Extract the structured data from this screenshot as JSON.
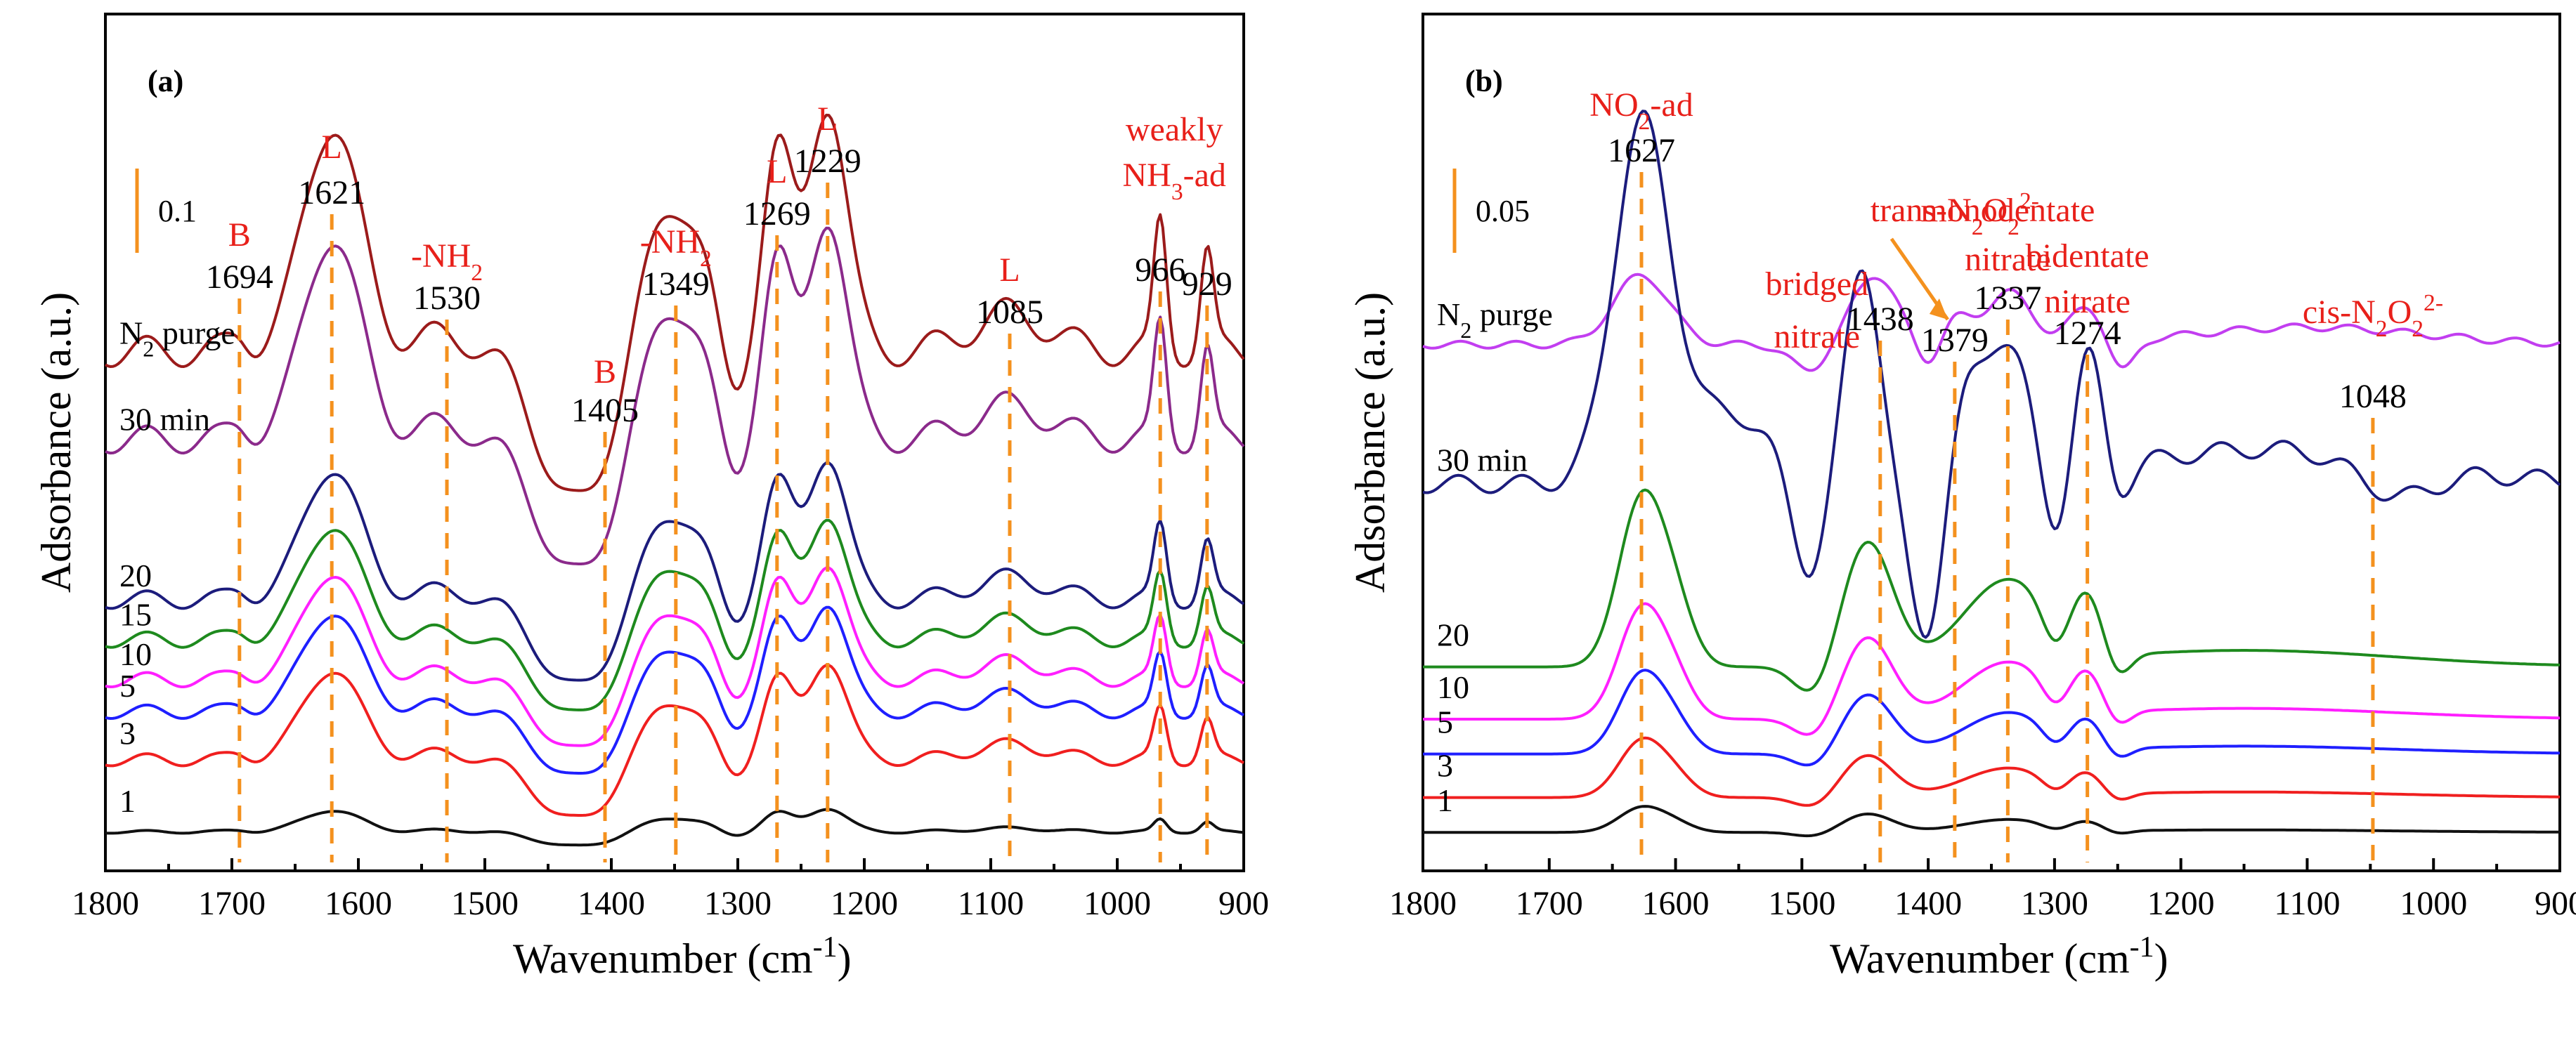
{
  "chart_data": [
    {
      "type": "line",
      "panel": "(a)",
      "xlabel_main": "Wavenumber (cm",
      "xlabel_sup": "-1",
      "xlabel_end": ")",
      "ylabel": "Adsorbance (a.u.)",
      "xlim": [
        1800,
        900
      ],
      "xticks": [
        1800,
        1700,
        1600,
        1500,
        1400,
        1300,
        1200,
        1100,
        1000,
        900
      ],
      "scale_bar": "0.1",
      "peaks": [
        1694,
        1621,
        1530,
        1405,
        1349,
        1269,
        1229,
        1085,
        966,
        929
      ],
      "assignments": [
        {
          "wavenumber": 1694,
          "label": "B"
        },
        {
          "wavenumber": 1621,
          "label": "L"
        },
        {
          "wavenumber": 1530,
          "label": "-NH",
          "sub": "2"
        },
        {
          "wavenumber": 1405,
          "label": "B"
        },
        {
          "wavenumber": 1349,
          "label": "-NH",
          "sub": "2"
        },
        {
          "wavenumber": 1269,
          "label": "L"
        },
        {
          "wavenumber": 1229,
          "label": "L"
        },
        {
          "wavenumber": 1085,
          "label": "L"
        },
        {
          "wavenumber": 966,
          "label": "weakly"
        },
        {
          "wavenumber": 966,
          "label": "NH",
          "sub": "3",
          "tail": "-ad"
        }
      ],
      "series": [
        {
          "name": "N2 purge",
          "label": "N",
          "label_sub": "2",
          "label_tail": " purge",
          "color": "#9b1b1b",
          "offset": 0.64,
          "profile": "a",
          "scale": 0.95
        },
        {
          "name": "30 min",
          "label": "30 min",
          "color": "#8b2a8b",
          "offset": 0.53,
          "profile": "a",
          "scale": 0.85
        },
        {
          "name": "20",
          "label": "20",
          "color": "#1c1c7c",
          "offset": 0.33,
          "profile": "a",
          "scale": 0.55
        },
        {
          "name": "15",
          "label": "15",
          "color": "#1e8a1e",
          "offset": 0.28,
          "profile": "a",
          "scale": 0.48
        },
        {
          "name": "10",
          "label": "10",
          "color": "#ff1fff",
          "offset": 0.23,
          "profile": "a",
          "scale": 0.45
        },
        {
          "name": "5",
          "label": "5",
          "color": "#1f1fff",
          "offset": 0.19,
          "profile": "a",
          "scale": 0.42
        },
        {
          "name": "3",
          "label": "3",
          "color": "#f01f1f",
          "offset": 0.13,
          "profile": "a",
          "scale": 0.38
        },
        {
          "name": "1",
          "label": "1",
          "color": "#111111",
          "offset": 0.04,
          "profile": "a",
          "scale": 0.09
        }
      ]
    },
    {
      "type": "line",
      "panel": "(b)",
      "xlabel_main": "Wavenumber (cm",
      "xlabel_sup": "-1",
      "xlabel_end": ")",
      "ylabel": "Adsorbance (a.u.)",
      "xlim": [
        1800,
        900
      ],
      "xticks": [
        1800,
        1700,
        1600,
        1500,
        1400,
        1300,
        1200,
        1100,
        1000,
        900
      ],
      "scale_bar": "0.05",
      "peaks": [
        1627,
        1438,
        1379,
        1337,
        1274,
        1048
      ],
      "assignments": [
        {
          "wavenumber": 1627,
          "label": "NO",
          "sub": "2",
          "tail": "-ad"
        },
        {
          "wavenumber": 1379,
          "label": "trans-N",
          "sub": "2",
          "mid": "O",
          "sub2": "2",
          "sup": "2-"
        },
        {
          "wavenumber": 1438,
          "label": "bridged"
        },
        {
          "wavenumber": 1438,
          "label": "nitrate"
        },
        {
          "wavenumber": 1337,
          "label": "monodentate"
        },
        {
          "wavenumber": 1337,
          "label": "nitrate"
        },
        {
          "wavenumber": 1274,
          "label": "bidentate"
        },
        {
          "wavenumber": 1274,
          "label": "nitrate"
        },
        {
          "wavenumber": 1048,
          "label": "cis-N",
          "sub": "2",
          "mid": "O",
          "sub2": "2",
          "sup": "2-"
        }
      ],
      "series": [
        {
          "name": "N2 purge",
          "label": "N",
          "label_sub": "2",
          "label_tail": " purge",
          "color": "#c23ef0",
          "offset": 0.58,
          "profile": "b_purge",
          "scale": 1.0
        },
        {
          "name": "30 min",
          "label": "30 min",
          "color": "#1c1c7c",
          "offset": 0.42,
          "profile": "b_30",
          "scale": 1.0
        },
        {
          "name": "20",
          "label": "20",
          "color": "#1e8a1e",
          "offset": 0.21,
          "profile": "b",
          "scale": 0.95
        },
        {
          "name": "10",
          "label": "10",
          "color": "#ff1fff",
          "offset": 0.15,
          "profile": "b",
          "scale": 0.62
        },
        {
          "name": "5",
          "label": "5",
          "color": "#1f1fff",
          "offset": 0.11,
          "profile": "b",
          "scale": 0.45
        },
        {
          "name": "3",
          "label": "3",
          "color": "#f01f1f",
          "offset": 0.06,
          "profile": "b",
          "scale": 0.32
        },
        {
          "name": "1",
          "label": "1",
          "color": "#111111",
          "offset": 0.02,
          "profile": "b",
          "scale": 0.14
        }
      ]
    }
  ]
}
